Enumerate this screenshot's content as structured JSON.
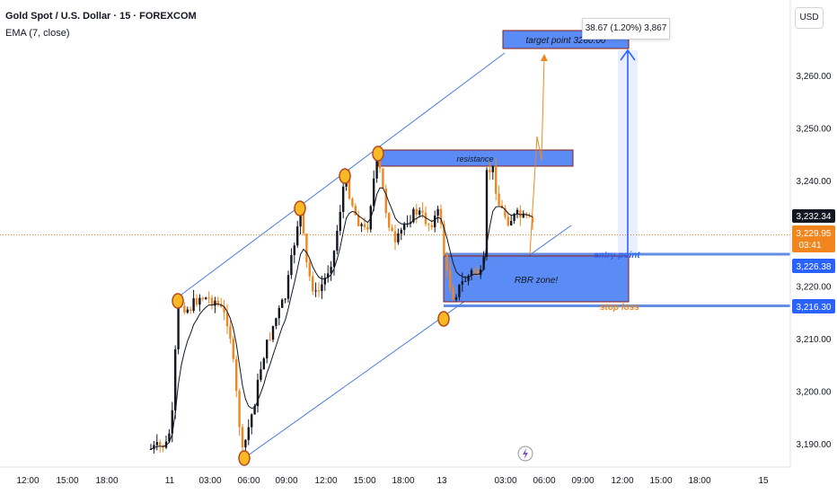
{
  "header": {
    "title": "Gold Spot / U.S. Dollar · 15 · FOREXCOM",
    "indicator": "EMA (7, close)"
  },
  "currency_button": "USD",
  "measure_label": "38.67 (1.20%) 3,867",
  "colors": {
    "up": "#131722",
    "down": "#f0861d",
    "channel": "#4a7be0",
    "zone_fill": "#5b8cf5",
    "zone_border": "#8b1a1a",
    "level_line": "#4a7be0",
    "pivot_fill": "#f7b924",
    "pivot_stroke": "#b7471b",
    "ema": "#131722",
    "projection": "#f0861d",
    "target_arrow": "#2962ff",
    "last_price_bg": "#131722",
    "current_price_bg": "#f0861d",
    "level_label_bg": "#2962ff",
    "entry_text": "#2962ff",
    "stop_text": "#f0861d"
  },
  "annotations": {
    "target_point": "target point 3260.00",
    "resistance": "resistance",
    "rbr_zone": "RBR zone!",
    "entry_point": "entry point",
    "stop_loss": "stop loss"
  },
  "price_labels": {
    "last": "3,232.34",
    "current_price": "3,229.95",
    "countdown": "03:41",
    "entry": "3,226.38",
    "stop": "3,216.30"
  },
  "chart_data": {
    "type": "candlestick",
    "symbol": "XAUUSD",
    "timeframe": "15",
    "y_ticks": [
      3190,
      3200,
      3210,
      3220,
      3230,
      3240,
      3250,
      3260
    ],
    "y_tick_labels": [
      "3,190.00",
      "3,200.00",
      "3,210.00",
      "3,220.00",
      "3,230.00",
      "3,240.00",
      "3,250.00",
      "3,260.00"
    ],
    "x_tick_labels": [
      "12:00",
      "15:00",
      "18:00",
      "11",
      "03:00",
      "06:00",
      "09:00",
      "12:00",
      "15:00",
      "18:00",
      "13",
      "03:00",
      "06:00",
      "09:00",
      "12:00",
      "15:00",
      "18:00",
      "15"
    ],
    "levels": {
      "target": 3260.0,
      "resistance_high": 3245.5,
      "resistance_low": 3242.6,
      "entry": 3226.38,
      "rbr_low": 3217.5,
      "stop": 3216.3,
      "current": 3229.95,
      "last": 3232.34
    },
    "pivot_points": [
      {
        "label": "low",
        "time": "10 23:00",
        "price": 3218.0
      },
      {
        "label": "high",
        "time": "11 06:00",
        "price": 3187.0
      },
      {
        "label": "high",
        "time": "11 10:00",
        "price": 3233.0
      },
      {
        "label": "high",
        "time": "11 14:00",
        "price": 3241.5
      },
      {
        "label": "high",
        "time": "11 15:00",
        "price": 3245.5
      },
      {
        "label": "low",
        "time": "12 00:00",
        "price": 3214.5
      }
    ],
    "measure": {
      "change": 38.67,
      "percent": 1.2,
      "ticks": 3867
    },
    "projection_path": [
      3226.38,
      3250.0,
      3241.0,
      3263.0
    ]
  }
}
